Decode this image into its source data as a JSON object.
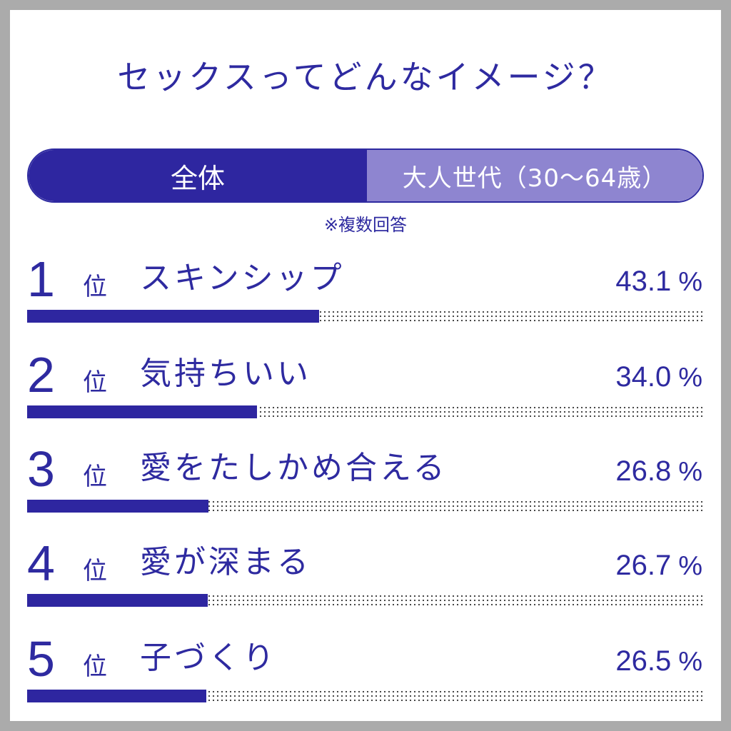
{
  "title": "セックスってどんなイメージ？",
  "tabs": {
    "all": "全体",
    "adult": "大人世代（30〜64歳）"
  },
  "note": "※複数回答",
  "rank_suffix": "位",
  "percent_unit": "%",
  "colors": {
    "primary": "#2e26a0",
    "inactive_tab": "#8e85d0",
    "frame": "#ababab"
  },
  "chart_data": {
    "type": "bar",
    "orientation": "horizontal",
    "title": "セックスってどんなイメージ？",
    "categories": [
      "スキンシップ",
      "気持ちいい",
      "愛をたしかめ合える",
      "愛が深まる",
      "子づくり"
    ],
    "ranks": [
      "1",
      "2",
      "3",
      "4",
      "5"
    ],
    "values": [
      43.1,
      34.0,
      26.8,
      26.7,
      26.5
    ],
    "value_labels": [
      "43.1",
      "34.0",
      "26.8",
      "26.7",
      "26.5"
    ],
    "xlim": [
      0,
      100
    ]
  }
}
